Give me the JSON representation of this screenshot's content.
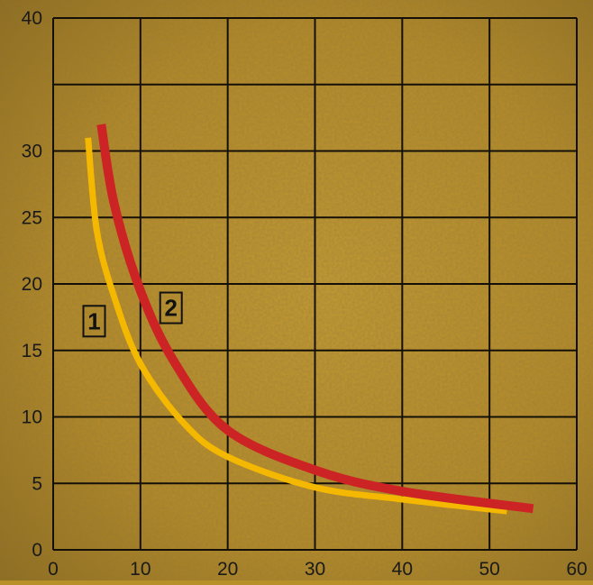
{
  "chart_data": {
    "type": "line",
    "xlim": [
      0,
      60
    ],
    "ylim": [
      0,
      40
    ],
    "x_ticks": [
      "0",
      "10",
      "20",
      "30",
      "40",
      "50",
      "60"
    ],
    "y_ticks": [
      "0",
      "5",
      "10",
      "15",
      "20",
      "25",
      "30",
      "40"
    ],
    "grid": true,
    "colors": {
      "grid": "#141008",
      "tick_text": "#1a1a1a",
      "background": "#b8902a",
      "series_1": "#f5b800",
      "series_2": "#cc2424"
    },
    "series": [
      {
        "name": "1",
        "points": [
          [
            4,
            31
          ],
          [
            5,
            24
          ],
          [
            7,
            19
          ],
          [
            10,
            14
          ],
          [
            15,
            9.5
          ],
          [
            20,
            7
          ],
          [
            30,
            4.7
          ],
          [
            40,
            3.8
          ],
          [
            52,
            2.9
          ]
        ]
      },
      {
        "name": "2",
        "points": [
          [
            5.5,
            32
          ],
          [
            7,
            26
          ],
          [
            10,
            19.5
          ],
          [
            14,
            14
          ],
          [
            20,
            9
          ],
          [
            30,
            6
          ],
          [
            40,
            4.4
          ],
          [
            55,
            3.1
          ]
        ]
      }
    ]
  }
}
